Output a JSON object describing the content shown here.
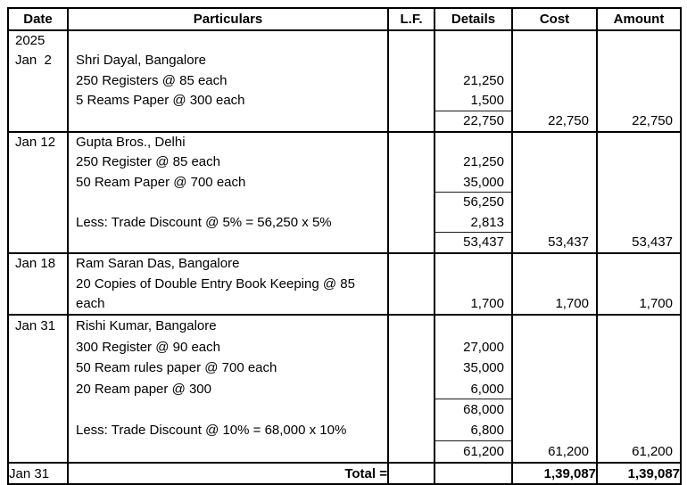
{
  "colors": {
    "background": "#ffffff",
    "text": "#000000",
    "border": "#000000"
  },
  "doc": {
    "columns": [
      "Date",
      "Particulars",
      "L.F.",
      "Details",
      "Cost",
      "Amount"
    ],
    "sections": [
      {
        "name": "jan-2-shri-dayal",
        "rows": [
          {
            "date": "2025"
          },
          {
            "date": "Jan  2",
            "particulars": "Shri Dayal, Bangalore"
          },
          {
            "particulars": "250 Registers @ 85 each",
            "details": "21,250"
          },
          {
            "particulars": "5 Reams Paper @ 300 each",
            "details": "1,500",
            "rule_below": true
          },
          {
            "details": "22,750",
            "cost": "22,750",
            "amount": "22,750"
          }
        ]
      },
      {
        "name": "jan-12-gupta-bros",
        "rows": [
          {
            "date": "Jan 12",
            "particulars": "Gupta Bros., Delhi"
          },
          {
            "particulars": "250 Register @ 85 each",
            "details": "21,250"
          },
          {
            "particulars": "50 Ream Paper @ 700 each",
            "details": "35,000",
            "rule_below": true
          },
          {
            "details": "56,250"
          },
          {
            "particulars": "Less: Trade Discount @ 5% = 56,250 x 5%",
            "details": "2,813",
            "rule_below": true
          },
          {
            "details": "53,437",
            "cost": "53,437",
            "amount": "53,437"
          }
        ]
      },
      {
        "name": "jan-18-ram-saran-das",
        "rows": [
          {
            "date": "Jan 18",
            "particulars": "Ram Saran Das, Bangalore"
          },
          {
            "particulars": "20 Copies of Double Entry Book Keeping @ 85"
          },
          {
            "particulars": "each",
            "details": "1,700",
            "cost": "1,700",
            "amount": "1,700"
          }
        ]
      },
      {
        "name": "jan-31-rishi-kumar",
        "rows": [
          {
            "date": "Jan 31",
            "particulars": "Rishi Kumar, Bangalore"
          },
          {
            "particulars": "300 Register @ 90 each",
            "details": "27,000"
          },
          {
            "particulars": "50 Ream rules paper @ 700 each",
            "details": "35,000"
          },
          {
            "particulars": "20 Ream paper @ 300",
            "details": "6,000",
            "rule_below": true
          },
          {
            "details": "68,000"
          },
          {
            "particulars": "Less: Trade Discount @ 10% = 68,000 x 10%",
            "details": "6,800",
            "rule_below": true
          },
          {
            "details": "61,200",
            "cost": "61,200",
            "amount": "61,200"
          }
        ]
      }
    ],
    "total_row": {
      "date": "Jan 31",
      "label": "Total =",
      "cost": "1,39,087",
      "amount": "1,39,087"
    }
  }
}
